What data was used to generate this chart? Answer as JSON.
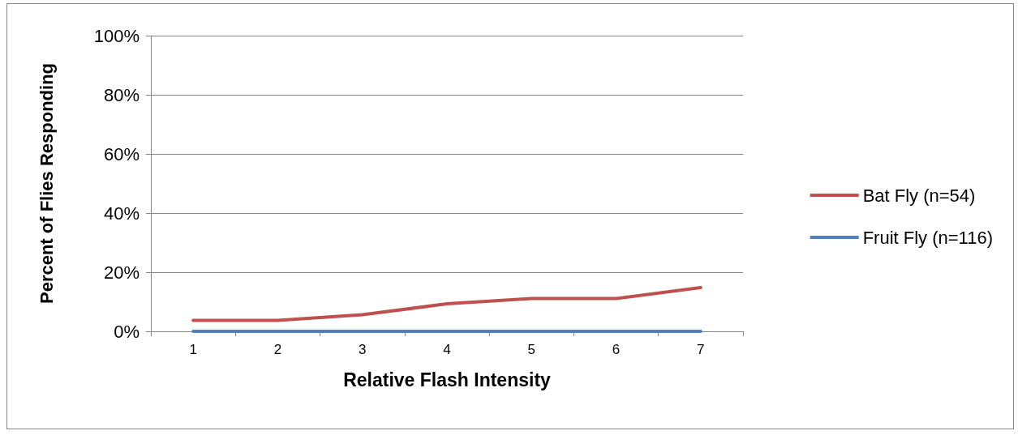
{
  "chart_data": {
    "type": "line",
    "xlabel": "Relative Flash Intensity",
    "ylabel": "Percent of Flies Responding",
    "categories": [
      "1",
      "2",
      "3",
      "4",
      "5",
      "6",
      "7"
    ],
    "series": [
      {
        "name": "Bat Fly (n=54)",
        "color": "#c0504d",
        "values": [
          3.7,
          3.7,
          5.6,
          9.3,
          11.1,
          11.1,
          14.8
        ]
      },
      {
        "name": "Fruit Fly (n=116)",
        "color": "#4f81bd",
        "values": [
          0,
          0,
          0,
          0,
          0,
          0,
          0
        ]
      }
    ],
    "ylim": [
      0,
      100
    ],
    "yticks": [
      {
        "value": 0,
        "label": "0%"
      },
      {
        "value": 20,
        "label": "20%"
      },
      {
        "value": 40,
        "label": "40%"
      },
      {
        "value": 60,
        "label": "60%"
      },
      {
        "value": 80,
        "label": "80%"
      },
      {
        "value": 100,
        "label": "100%"
      }
    ],
    "grid": "y",
    "legend": "right",
    "marker": "none",
    "line_style": "solid"
  }
}
